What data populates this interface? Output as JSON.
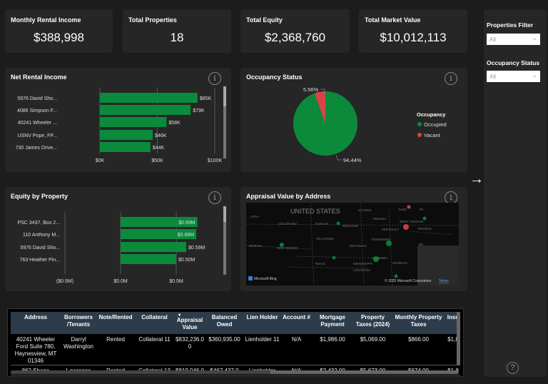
{
  "kpis": [
    {
      "title": "Monthly Rental Income",
      "value": "$388,998"
    },
    {
      "title": "Total Properties",
      "value": "18"
    },
    {
      "title": "Total Equity",
      "value": "$2,368,760"
    },
    {
      "title": "Total Market Value",
      "value": "$10,012,113"
    }
  ],
  "colors": {
    "green": "#0b8a3c",
    "red": "#d64545",
    "background": "#1c1c1c",
    "card": "#262626",
    "table_header": "#2d3c4b"
  },
  "info_icon": "i",
  "chart_data": [
    {
      "type": "bar",
      "orientation": "horizontal",
      "title": "Net Rental Income",
      "categories": [
        "5976 David Sho...",
        "4086 Simpson F...",
        "40241 Wheeler ...",
        "USNV Pope, FP...",
        "730 James Drive..."
      ],
      "values": [
        85,
        79,
        58,
        46,
        44
      ],
      "data_labels": [
        "$85K",
        "$79K",
        "$58K",
        "$46K",
        "$44K"
      ],
      "xlim": [
        0,
        100
      ],
      "ticks": [
        "$0K",
        "$50K",
        "$100K"
      ],
      "grid": true
    },
    {
      "type": "pie",
      "title": "Occupancy Status",
      "legend_title": "Occupancy",
      "slices": [
        {
          "name": "Occupied",
          "value": 94.44,
          "label": "94.44%"
        },
        {
          "name": "Vacant",
          "value": 5.56,
          "label": "5.56%"
        }
      ],
      "legend_placement": "right"
    },
    {
      "type": "bar",
      "orientation": "horizontal",
      "title": "Equity by Property",
      "categories": [
        "PSC 3437, Box 2...",
        "110 Anthony M...",
        "5976 David Sho...",
        "763 Heather Pin..."
      ],
      "values": [
        0.69,
        0.68,
        0.59,
        0.5
      ],
      "data_labels": [
        "$0.69M",
        "$0.68M",
        "$0.59M",
        "$0.50M"
      ],
      "xlim": [
        -0.5,
        0.5
      ],
      "ticks": [
        "($0.5M)",
        "$0.0M",
        "$0.5M"
      ],
      "grid": true
    }
  ],
  "map": {
    "title": "Appraisal Value by Address",
    "country_label": "UNITED STATES",
    "state_labels": [
      "UTAH",
      "COLORADO",
      "KANSAS",
      "MISSOURI",
      "ILLINOIS",
      "INDIANA",
      "OHIO",
      "PA",
      "WEST VIRGINIA",
      "VIRGINIA",
      "KENTUCKY",
      "TENNESSEE",
      "NC",
      "ARIZONA",
      "NEW MEXICO",
      "OKLAHOMA",
      "ARKANSAS",
      "TEXAS",
      "MISSISSIPPI",
      "ALABAMA",
      "GEORGIA",
      "LOUISIANA"
    ],
    "bing_label": "Microsoft Bing",
    "copyright": "© 2025 Microsoft Corporation",
    "terms": "Terms"
  },
  "table": {
    "columns": [
      "Address",
      "Borrowers /Tenants",
      "Note/Rented",
      "Collateral",
      "Appraisal Value",
      "Balanced Owed",
      "Lien Holder",
      "Account #",
      "Mortgage Payment",
      "Property Taxes (2024)",
      "Monthly Property Taxes",
      "Insu"
    ],
    "sort_icon": "▾",
    "rows": [
      [
        "40241 Wheeler Ford Suite 780, Haynesview, MT 01346",
        "Darryl Washington",
        "Rented",
        "Collateral 11",
        "$832,236.00",
        "$360,935.00",
        "Lienholder 11",
        "N/A",
        "$1,986.00",
        "$5,069.00",
        "$866.00",
        "$1,8"
      ],
      [
        "862 Shane",
        "Lawrence",
        "Rented",
        "Collateral 13",
        "$819,046.00",
        "$467,437.0",
        "Lienholder",
        "N/A",
        "$2,432.00",
        "$5,673.00",
        "$674.00",
        "$1,8"
      ]
    ]
  },
  "filters": [
    {
      "label": "Properties Filter",
      "value": "All"
    },
    {
      "label": "Occupancy Status",
      "value": "All"
    }
  ],
  "help_icon": "?",
  "expand_arrow": "→"
}
